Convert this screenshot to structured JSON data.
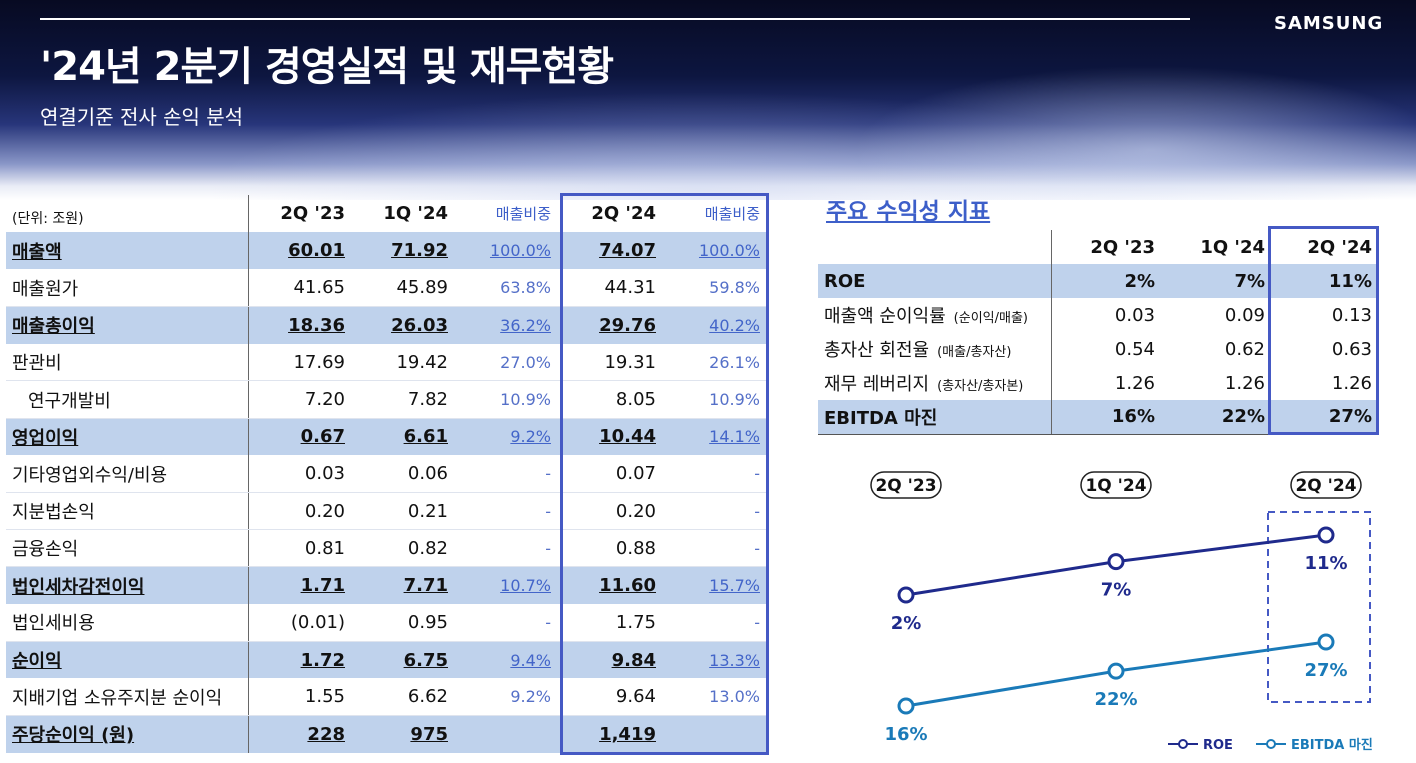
{
  "header": {
    "logo": "SAMSUNG",
    "title": "'24년 2분기 경영실적 및 재무현황",
    "subtitle": "연결기준 전사 손익 분석"
  },
  "income_table": {
    "unit": "(단위: 조원)",
    "columns": [
      "2Q '23",
      "1Q '24",
      "매출비중",
      "2Q '24",
      "매출비중"
    ],
    "rows": [
      {
        "label": "매출액",
        "v1": "60.01",
        "v2": "71.92",
        "r1": "100.0%",
        "v3": "74.07",
        "r2": "100.0%"
      },
      {
        "label": "매출원가",
        "v1": "41.65",
        "v2": "45.89",
        "r1": "63.8%",
        "v3": "44.31",
        "r2": "59.8%"
      },
      {
        "label": "매출총이익",
        "v1": "18.36",
        "v2": "26.03",
        "r1": "36.2%",
        "v3": "29.76",
        "r2": "40.2%"
      },
      {
        "label": "판관비",
        "v1": "17.69",
        "v2": "19.42",
        "r1": "27.0%",
        "v3": "19.31",
        "r2": "26.1%"
      },
      {
        "label": "연구개발비",
        "v1": "7.20",
        "v2": "7.82",
        "r1": "10.9%",
        "v3": "8.05",
        "r2": "10.9%"
      },
      {
        "label": "영업이익",
        "v1": "0.67",
        "v2": "6.61",
        "r1": "9.2%",
        "v3": "10.44",
        "r2": "14.1%"
      },
      {
        "label": "기타영업외수익/비용",
        "v1": "0.03",
        "v2": "0.06",
        "r1": "-",
        "v3": "0.07",
        "r2": "-"
      },
      {
        "label": "지분법손익",
        "v1": "0.20",
        "v2": "0.21",
        "r1": "-",
        "v3": "0.20",
        "r2": "-"
      },
      {
        "label": "금융손익",
        "v1": "0.81",
        "v2": "0.82",
        "r1": "-",
        "v3": "0.88",
        "r2": "-"
      },
      {
        "label": "법인세차감전이익",
        "v1": "1.71",
        "v2": "7.71",
        "r1": "10.7%",
        "v3": "11.60",
        "r2": "15.7%"
      },
      {
        "label": "법인세비용",
        "v1": "(0.01)",
        "v2": "0.95",
        "r1": "-",
        "v3": "1.75",
        "r2": "-"
      },
      {
        "label": "순이익",
        "v1": "1.72",
        "v2": "6.75",
        "r1": "9.4%",
        "v3": "9.84",
        "r2": "13.3%"
      },
      {
        "label": "지배기업 소유주지분 순이익",
        "v1": "1.55",
        "v2": "6.62",
        "r1": "9.2%",
        "v3": "9.64",
        "r2": "13.0%"
      },
      {
        "label": "주당순이익 (원)",
        "v1": "228",
        "v2": "975",
        "r1": "",
        "v3": "1,419",
        "r2": ""
      }
    ]
  },
  "kpi": {
    "title": "주요 수익성 지표",
    "columns": [
      "2Q '23",
      "1Q '24",
      "2Q '24"
    ],
    "rows": [
      {
        "label": "ROE",
        "sub": "",
        "v1": "2%",
        "v2": "7%",
        "v3": "11%"
      },
      {
        "label": "매출액 순이익률",
        "sub": "(순이익/매출)",
        "v1": "0.03",
        "v2": "0.09",
        "v3": "0.13"
      },
      {
        "label": "총자산 회전율",
        "sub": "(매출/총자산)",
        "v1": "0.54",
        "v2": "0.62",
        "v3": "0.63"
      },
      {
        "label": "재무 레버리지",
        "sub": "(총자산/총자본)",
        "v1": "1.26",
        "v2": "1.26",
        "v3": "1.26"
      },
      {
        "label": "EBITDA 마진",
        "sub": "",
        "v1": "16%",
        "v2": "22%",
        "v3": "27%"
      }
    ]
  },
  "chart_data": {
    "type": "line",
    "categories": [
      "2Q '23",
      "1Q '24",
      "2Q '24"
    ],
    "series": [
      {
        "name": "ROE",
        "values": [
          2,
          7,
          11
        ],
        "labels": [
          "2%",
          "7%",
          "11%"
        ],
        "color": "#1f2a8c"
      },
      {
        "name": "EBITDA 마진",
        "values": [
          16,
          22,
          27
        ],
        "labels": [
          "16%",
          "22%",
          "27%"
        ],
        "color": "#1a7ab8"
      }
    ]
  }
}
